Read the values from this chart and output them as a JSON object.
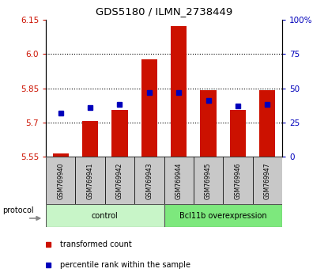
{
  "title": "GDS5180 / ILMN_2738449",
  "samples": [
    "GSM769940",
    "GSM769941",
    "GSM769942",
    "GSM769943",
    "GSM769944",
    "GSM769945",
    "GSM769946",
    "GSM769947"
  ],
  "red_values": [
    5.565,
    5.705,
    5.755,
    5.975,
    6.12,
    5.84,
    5.755,
    5.84
  ],
  "blue_values": [
    32,
    36,
    38,
    47,
    47,
    41,
    37,
    38
  ],
  "y_min": 5.55,
  "y_max": 6.15,
  "y_ticks": [
    5.55,
    5.7,
    5.85,
    6.0,
    6.15
  ],
  "y2_ticks": [
    0,
    25,
    50,
    75,
    100
  ],
  "y2_tick_labels": [
    "0",
    "25",
    "50",
    "75",
    "100%"
  ],
  "groups": [
    {
      "label": "control",
      "start": 0,
      "end": 4,
      "color": "#c8f5c8"
    },
    {
      "label": "Bcl11b overexpression",
      "start": 4,
      "end": 8,
      "color": "#7de87d"
    }
  ],
  "bar_color": "#cc1100",
  "dot_color": "#0000bb",
  "bar_bottom": 5.55,
  "sample_box_color": "#c8c8c8",
  "legend_items": [
    {
      "label": "transformed count",
      "color": "#cc1100"
    },
    {
      "label": "percentile rank within the sample",
      "color": "#0000bb"
    }
  ],
  "protocol_label": "protocol",
  "tick_label_color_left": "#cc1100",
  "tick_label_color_right": "#0000bb",
  "grid_line_ticks": [
    5.7,
    5.85,
    6.0
  ]
}
